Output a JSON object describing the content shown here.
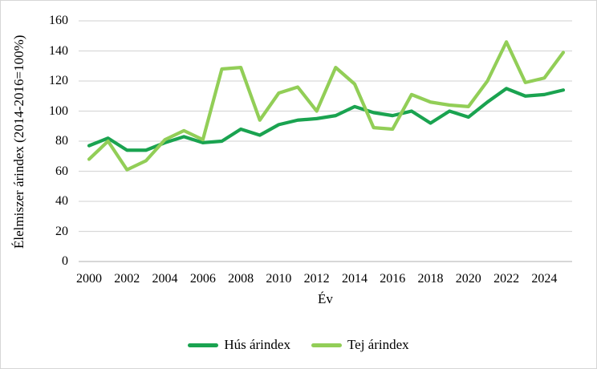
{
  "chart_data": {
    "type": "line",
    "title": "",
    "ylabel": "Élelmiszer árindex (2014-2016=100%)",
    "xlabel": "Év",
    "x": [
      2000,
      2001,
      2002,
      2003,
      2004,
      2005,
      2006,
      2007,
      2008,
      2009,
      2010,
      2011,
      2012,
      2013,
      2014,
      2015,
      2016,
      2017,
      2018,
      2019,
      2020,
      2021,
      2022,
      2023,
      2024,
      2025
    ],
    "series": [
      {
        "name": "Hús árindex",
        "color": "#1aa350",
        "values": [
          77,
          82,
          74,
          74,
          79,
          83,
          79,
          80,
          88,
          84,
          91,
          94,
          95,
          97,
          103,
          99,
          97,
          100,
          92,
          100,
          96,
          106,
          115,
          110,
          111,
          114
        ]
      },
      {
        "name": "Tej árindex",
        "color": "#92ce57",
        "values": [
          68,
          80,
          61,
          67,
          81,
          87,
          81,
          128,
          129,
          94,
          112,
          116,
          100,
          129,
          118,
          89,
          88,
          111,
          106,
          104,
          103,
          120,
          146,
          119,
          122,
          139
        ]
      }
    ],
    "ylim": [
      0,
      160
    ],
    "yticks": [
      0,
      20,
      40,
      60,
      80,
      100,
      120,
      140,
      160
    ],
    "xticks": [
      2000,
      2002,
      2004,
      2006,
      2008,
      2010,
      2012,
      2014,
      2016,
      2018,
      2020,
      2022,
      2024
    ],
    "grid": "horizontal-only",
    "legend_position": "bottom-center"
  },
  "colors": {
    "gridline": "#d9d9d9",
    "axis_line": "#bfbfbf",
    "text": "#000000",
    "background": "#ffffff"
  }
}
